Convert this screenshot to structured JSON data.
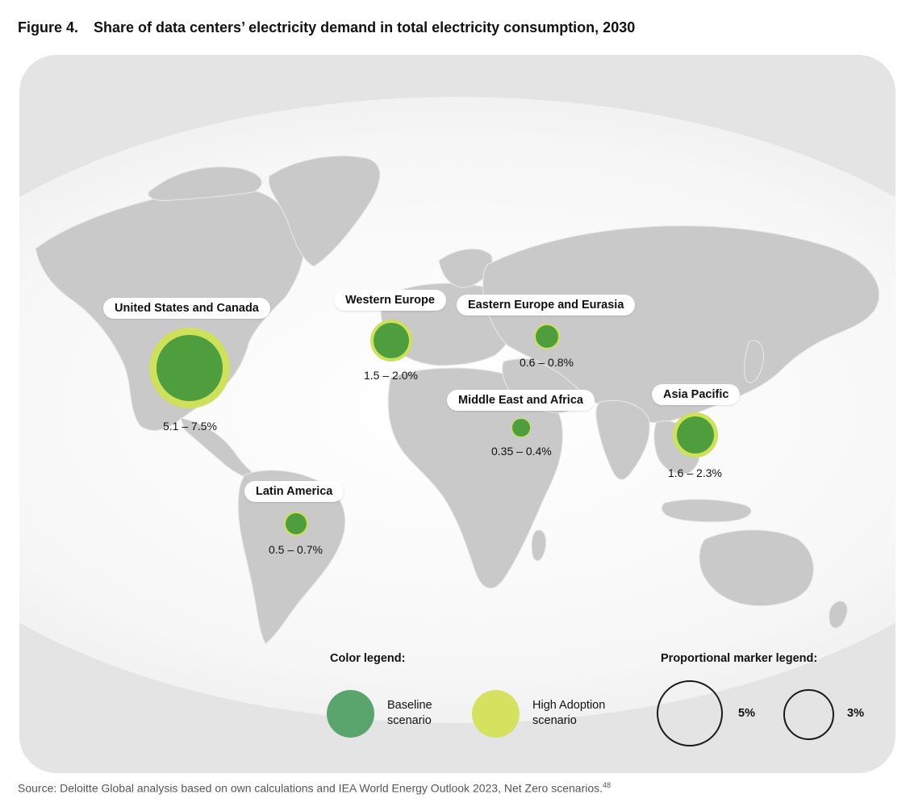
{
  "figure": {
    "number": "Figure 4.",
    "title": "Share of data centers’ electricity demand in total electricity consumption, 2030"
  },
  "regions": [
    {
      "id": "us-canada",
      "name": "United States and Canada",
      "value": "5.1 – 7.5%",
      "baseline": 5.1,
      "high_adoption": 7.5
    },
    {
      "id": "western-europe",
      "name": "Western Europe",
      "value": "1.5 – 2.0%",
      "baseline": 1.5,
      "high_adoption": 2.0
    },
    {
      "id": "eastern-europe-eurasia",
      "name": "Eastern Europe and Eurasia",
      "value": "0.6 – 0.8%",
      "baseline": 0.6,
      "high_adoption": 0.8
    },
    {
      "id": "middle-east-africa",
      "name": "Middle East and Africa",
      "value": "0.35 – 0.4%",
      "baseline": 0.35,
      "high_adoption": 0.4
    },
    {
      "id": "asia-pacific",
      "name": "Asia Pacific",
      "value": "1.6 – 2.3%",
      "baseline": 1.6,
      "high_adoption": 2.3
    },
    {
      "id": "latin-america",
      "name": "Latin America",
      "value": "0.5 – 0.7%",
      "baseline": 0.5,
      "high_adoption": 0.7
    }
  ],
  "color_legend": {
    "title": "Color legend:",
    "baseline": {
      "label": "Baseline\nscenario",
      "color": "#5aa46e"
    },
    "high": {
      "label": "High Adoption\nscenario",
      "color": "#d4e25f"
    }
  },
  "marker_legend": {
    "title": "Proportional marker legend:",
    "large": "5%",
    "small": "3%"
  },
  "colors": {
    "baseline_marker": "#4f9e3e",
    "high_marker": "#cfe05a",
    "land": "#c8c8c8",
    "background": "#e4e4e4"
  },
  "source": {
    "text": "Source: Deloitte Global analysis based on own calculations and IEA World Energy Outlook 2023, Net Zero scenarios.",
    "note": "48"
  }
}
